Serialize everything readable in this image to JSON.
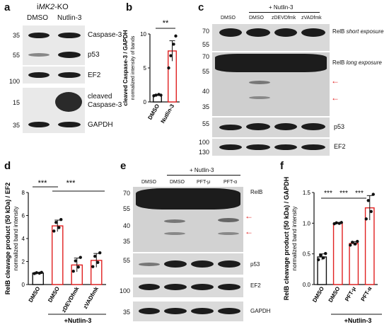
{
  "panel_a": {
    "label": "a",
    "title_prefix": "i",
    "title_italic": "MK2",
    "title_suffix": "-KO",
    "lanes": [
      "DMSO",
      "Nutlin-3"
    ],
    "rows": [
      {
        "marker": "35",
        "name": "Caspase-3"
      },
      {
        "marker": "55",
        "name": "p53"
      },
      {
        "marker": "100",
        "name": "EF2"
      },
      {
        "marker": "15",
        "name": "cleaved\nCaspase-3"
      },
      {
        "marker": "35",
        "name": "GAPDH"
      }
    ]
  },
  "panel_b": {
    "label": "b",
    "ylabel": "cleaved Caspase-3 / GAPDH",
    "ylabel2": "normalized intensity of bands",
    "significance": "**",
    "chart_data": {
      "type": "bar",
      "categories": [
        "DMSO",
        "Nutlin-3"
      ],
      "values": [
        1,
        7.5
      ],
      "errors": [
        0.1,
        1.5
      ],
      "points": [
        [
          0.9,
          1.0,
          1.1,
          1.0
        ],
        [
          5.0,
          6.8,
          8.5,
          9.7
        ]
      ],
      "ylim": [
        0,
        10
      ],
      "yticks": [
        "0",
        "5",
        "10"
      ]
    }
  },
  "panel_c": {
    "label": "c",
    "group_label": "+ Nutlin-3",
    "lanes": [
      "DMSO",
      "DMSO",
      "zDEVDfmk",
      "zVADfmk"
    ],
    "markers": [
      "70",
      "55",
      "70",
      "55",
      "40",
      "35",
      "55",
      "100",
      "130"
    ],
    "labels": [
      "RelB",
      "short exposure",
      "RelB",
      "long exposure",
      "p53",
      "EF2"
    ]
  },
  "panel_d": {
    "label": "d",
    "ylabel": "RelB cleavage product (50 kDa) / EF2",
    "ylabel2": "normalized band intensity",
    "group_label": "+Nutlin-3",
    "significance": [
      "***",
      "***"
    ],
    "chart_data": {
      "type": "bar",
      "categories": [
        "DMSO",
        "DMSO",
        "zDEVDfmk",
        "zVADfmk"
      ],
      "values": [
        1,
        5.1,
        1.7,
        2.1
      ],
      "errors": [
        0.05,
        0.5,
        0.6,
        0.6
      ],
      "ylim": [
        0,
        8
      ],
      "yticks": [
        "0",
        "2",
        "4",
        "6",
        "8"
      ]
    }
  },
  "panel_e": {
    "label": "e",
    "group_label": "+ Nutlin-3",
    "lanes": [
      "DMSO",
      "DMSO",
      "PFT-μ",
      "PFT-α"
    ],
    "markers": [
      "70",
      "55",
      "40",
      "35",
      "55",
      "100",
      "35"
    ],
    "labels": [
      "RelB",
      "p53",
      "EF2",
      "GAPDH"
    ]
  },
  "panel_f": {
    "label": "f",
    "ylabel": "RelB cleavage product (50 kDa) / GAPDH",
    "ylabel2": "normalized band intensity",
    "group_label": "+Nutlin-3",
    "significance": [
      "***",
      "***",
      "***"
    ],
    "chart_data": {
      "type": "bar",
      "categories": [
        "DMSO",
        "DMSO",
        "PFT-μ",
        "PFT-α"
      ],
      "values": [
        0.45,
        1.0,
        0.67,
        1.25
      ],
      "errors": [
        0.05,
        0.01,
        0.03,
        0.2
      ],
      "ylim": [
        0,
        1.5
      ],
      "yticks": [
        "0.0",
        "0.5",
        "1.0",
        "1.5"
      ]
    }
  }
}
